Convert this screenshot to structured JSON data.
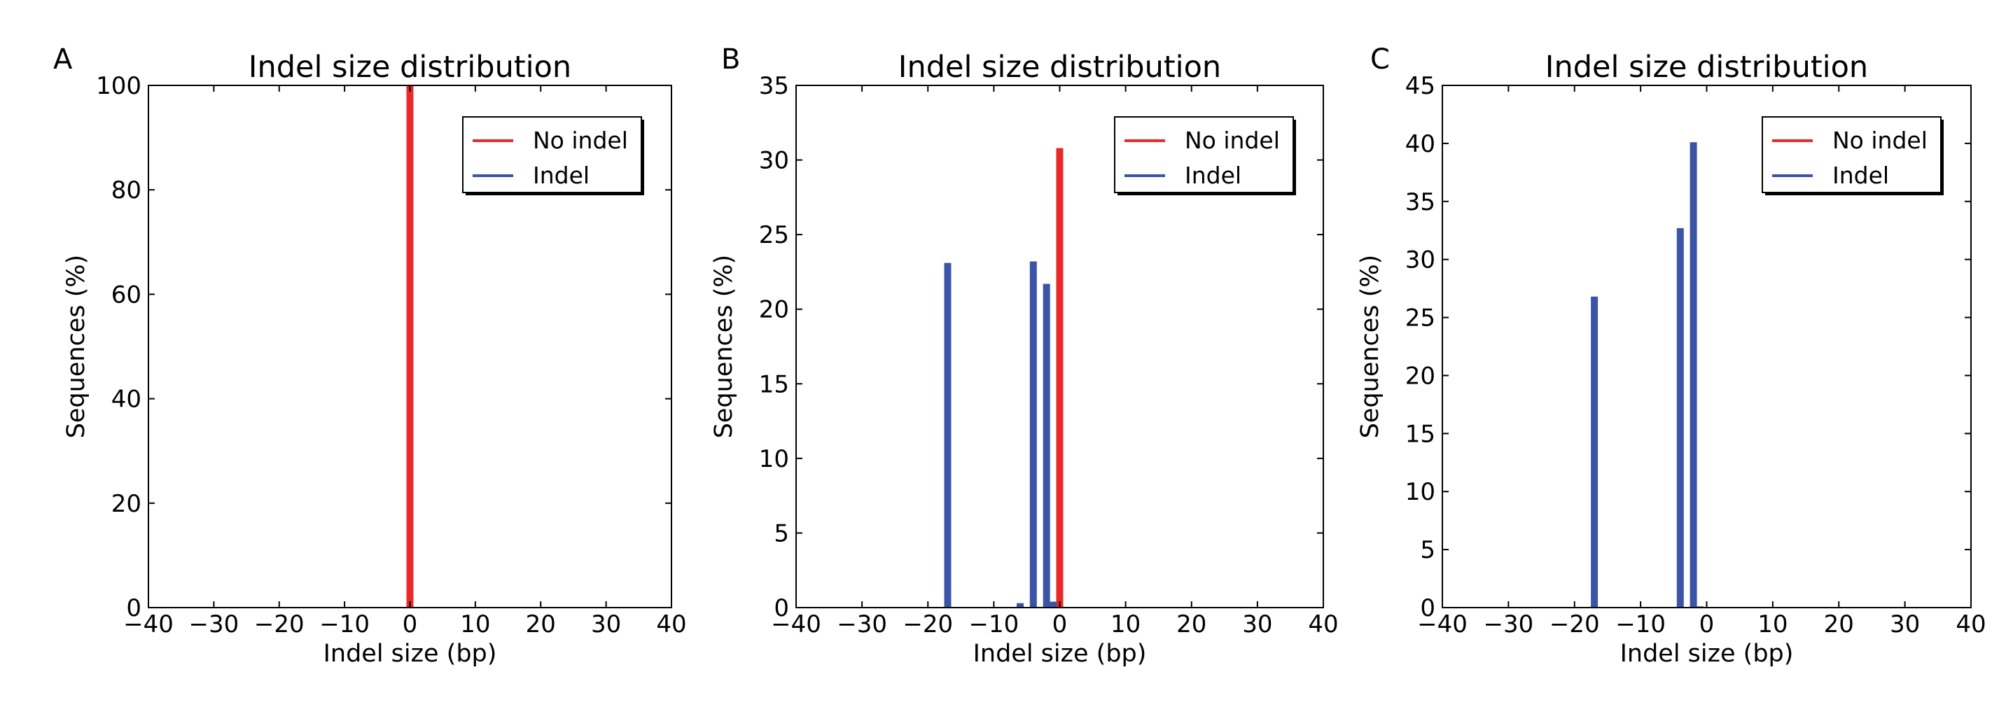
{
  "figure": {
    "background": "#ffffff"
  },
  "colors": {
    "no_indel": "#ea2a2a",
    "indel": "#3a55a6"
  },
  "chart_data": [
    {
      "panel": "A",
      "type": "bar",
      "title": "Indel size distribution",
      "xlabel": "Indel size (bp)",
      "ylabel": "Sequences (%)",
      "xlim": [
        -40,
        40
      ],
      "ylim": [
        0,
        100
      ],
      "xticks": [
        "−40",
        "−30",
        "−20",
        "−10",
        "0",
        "10",
        "20",
        "30",
        "40"
      ],
      "yticks": [
        "0",
        "20",
        "40",
        "60",
        "80",
        "100"
      ],
      "grid": false,
      "legend": {
        "position": "top-right",
        "entries": [
          "No indel",
          "Indel"
        ]
      },
      "series": [
        {
          "name": "No indel",
          "color": "#ea2a2a",
          "points": [
            {
              "x": 0,
              "y": 100
            }
          ]
        },
        {
          "name": "Indel",
          "color": "#3a55a6",
          "points": [
            {
              "x": -17,
              "y": 0.1
            }
          ]
        }
      ]
    },
    {
      "panel": "B",
      "type": "bar",
      "title": "Indel size distribution",
      "xlabel": "Indel size (bp)",
      "ylabel": "Sequences (%)",
      "xlim": [
        -40,
        40
      ],
      "ylim": [
        0,
        35
      ],
      "xticks": [
        "−40",
        "−30",
        "−20",
        "−10",
        "0",
        "10",
        "20",
        "30",
        "40"
      ],
      "yticks": [
        "0",
        "5",
        "10",
        "15",
        "20",
        "25",
        "30",
        "35"
      ],
      "grid": false,
      "legend": {
        "position": "top-right",
        "entries": [
          "No indel",
          "Indel"
        ]
      },
      "series": [
        {
          "name": "No indel",
          "color": "#ea2a2a",
          "points": [
            {
              "x": 0,
              "y": 30.8
            }
          ]
        },
        {
          "name": "Indel",
          "color": "#3a55a6",
          "points": [
            {
              "x": -17,
              "y": 23.1
            },
            {
              "x": -6,
              "y": 0.3
            },
            {
              "x": -4,
              "y": 23.2
            },
            {
              "x": -2,
              "y": 21.7
            },
            {
              "x": -1,
              "y": 0.4
            }
          ]
        }
      ]
    },
    {
      "panel": "C",
      "type": "bar",
      "title": "Indel size distribution",
      "xlabel": "Indel size (bp)",
      "ylabel": "Sequences (%)",
      "xlim": [
        -40,
        40
      ],
      "ylim": [
        0,
        45
      ],
      "xticks": [
        "−40",
        "−30",
        "−20",
        "−10",
        "0",
        "10",
        "20",
        "30",
        "40"
      ],
      "yticks": [
        "0",
        "5",
        "10",
        "15",
        "20",
        "25",
        "30",
        "35",
        "40",
        "45"
      ],
      "grid": false,
      "legend": {
        "position": "top-right",
        "entries": [
          "No indel",
          "Indel"
        ]
      },
      "series": [
        {
          "name": "No indel",
          "color": "#ea2a2a",
          "points": []
        },
        {
          "name": "Indel",
          "color": "#3a55a6",
          "points": [
            {
              "x": -17,
              "y": 26.8
            },
            {
              "x": -4,
              "y": 32.7
            },
            {
              "x": -2,
              "y": 40.1
            },
            {
              "x": -1,
              "y": 0.1
            }
          ]
        }
      ]
    }
  ]
}
